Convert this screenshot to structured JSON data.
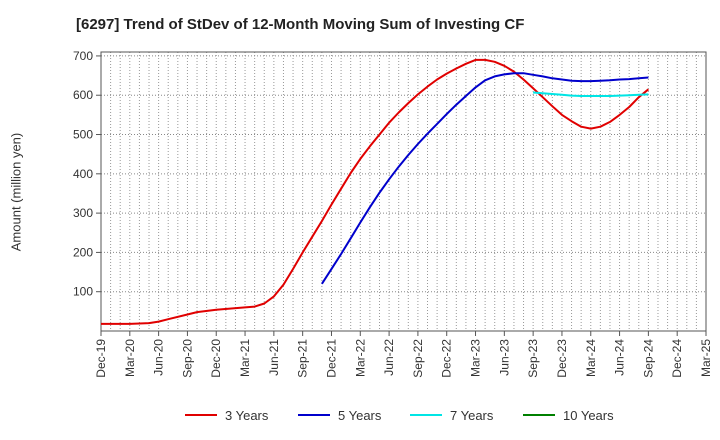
{
  "chart_data": {
    "type": "line",
    "title": "[6297]  Trend of StDev of 12-Month Moving Sum of Investing CF",
    "xlabel": "",
    "ylabel": "Amount (million yen)",
    "ylim": [
      0,
      710
    ],
    "yticks": [
      100,
      200,
      300,
      400,
      500,
      600,
      700
    ],
    "x_ticks": [
      "Dec-19",
      "Mar-20",
      "Jun-20",
      "Sep-20",
      "Dec-20",
      "Mar-21",
      "Jun-21",
      "Sep-21",
      "Dec-21",
      "Mar-22",
      "Jun-22",
      "Sep-22",
      "Dec-22",
      "Mar-23",
      "Jun-23",
      "Sep-23",
      "Dec-23",
      "Mar-24",
      "Jun-24",
      "Sep-24",
      "Dec-24",
      "Mar-25"
    ],
    "grid": true,
    "legend_position": "bottom",
    "series": [
      {
        "name": "3 Years",
        "color": "#e00000",
        "points": [
          [
            "Dec-19",
            18
          ],
          [
            "Mar-20",
            18
          ],
          [
            "May-20",
            20
          ],
          [
            "Jun-20",
            24
          ],
          [
            "Jul-20",
            30
          ],
          [
            "Sep-20",
            42
          ],
          [
            "Oct-20",
            48
          ],
          [
            "Dec-20",
            54
          ],
          [
            "Mar-21",
            60
          ],
          [
            "Apr-21",
            62
          ],
          [
            "May-21",
            70
          ],
          [
            "Jun-21",
            88
          ],
          [
            "Jul-21",
            118
          ],
          [
            "Aug-21",
            158
          ],
          [
            "Sep-21",
            200
          ],
          [
            "Oct-21",
            240
          ],
          [
            "Nov-21",
            280
          ],
          [
            "Dec-21",
            322
          ],
          [
            "Jan-22",
            362
          ],
          [
            "Feb-22",
            402
          ],
          [
            "Mar-22",
            438
          ],
          [
            "Apr-22",
            470
          ],
          [
            "May-22",
            500
          ],
          [
            "Jun-22",
            530
          ],
          [
            "Jul-22",
            556
          ],
          [
            "Aug-22",
            580
          ],
          [
            "Sep-22",
            602
          ],
          [
            "Oct-22",
            622
          ],
          [
            "Nov-22",
            640
          ],
          [
            "Dec-22",
            655
          ],
          [
            "Jan-23",
            668
          ],
          [
            "Feb-23",
            680
          ],
          [
            "Mar-23",
            690
          ],
          [
            "Apr-23",
            690
          ],
          [
            "May-23",
            685
          ],
          [
            "Jun-23",
            675
          ],
          [
            "Jul-23",
            660
          ],
          [
            "Aug-23",
            640
          ],
          [
            "Sep-23",
            618
          ],
          [
            "Oct-23",
            595
          ],
          [
            "Nov-23",
            572
          ],
          [
            "Dec-23",
            550
          ],
          [
            "Jan-24",
            534
          ],
          [
            "Feb-24",
            520
          ],
          [
            "Mar-24",
            515
          ],
          [
            "Apr-24",
            520
          ],
          [
            "May-24",
            532
          ],
          [
            "Jun-24",
            550
          ],
          [
            "Jul-24",
            570
          ],
          [
            "Aug-24",
            595
          ],
          [
            "Sep-24",
            615
          ]
        ]
      },
      {
        "name": "5 Years",
        "color": "#0000cc",
        "points": [
          [
            "Nov-21",
            120
          ],
          [
            "Dec-21",
            158
          ],
          [
            "Jan-22",
            196
          ],
          [
            "Feb-22",
            236
          ],
          [
            "Mar-22",
            276
          ],
          [
            "Apr-22",
            315
          ],
          [
            "May-22",
            352
          ],
          [
            "Jun-22",
            386
          ],
          [
            "Jul-22",
            418
          ],
          [
            "Aug-22",
            448
          ],
          [
            "Sep-22",
            476
          ],
          [
            "Oct-22",
            502
          ],
          [
            "Nov-22",
            527
          ],
          [
            "Dec-22",
            552
          ],
          [
            "Jan-23",
            576
          ],
          [
            "Feb-23",
            598
          ],
          [
            "Mar-23",
            620
          ],
          [
            "Apr-23",
            638
          ],
          [
            "May-23",
            648
          ],
          [
            "Jun-23",
            653
          ],
          [
            "Jul-23",
            656
          ],
          [
            "Aug-23",
            656
          ],
          [
            "Sep-23",
            652
          ],
          [
            "Oct-23",
            648
          ],
          [
            "Nov-23",
            643
          ],
          [
            "Dec-23",
            640
          ],
          [
            "Jan-24",
            637
          ],
          [
            "Feb-24",
            636
          ],
          [
            "Mar-24",
            636
          ],
          [
            "Apr-24",
            637
          ],
          [
            "May-24",
            638
          ],
          [
            "Jun-24",
            640
          ],
          [
            "Jul-24",
            641
          ],
          [
            "Aug-24",
            643
          ],
          [
            "Sep-24",
            645
          ]
        ]
      },
      {
        "name": "7 Years",
        "color": "#00e5e5",
        "points": [
          [
            "Sep-23",
            607
          ],
          [
            "Oct-23",
            605
          ],
          [
            "Nov-23",
            603
          ],
          [
            "Dec-23",
            601
          ],
          [
            "Jan-24",
            599
          ],
          [
            "Feb-24",
            598
          ],
          [
            "Mar-24",
            598
          ],
          [
            "Apr-24",
            598
          ],
          [
            "May-24",
            598
          ],
          [
            "Jun-24",
            599
          ],
          [
            "Jul-24",
            600
          ],
          [
            "Aug-24",
            601
          ],
          [
            "Sep-24",
            602
          ]
        ]
      },
      {
        "name": "10 Years",
        "color": "#008000",
        "points": []
      }
    ]
  }
}
